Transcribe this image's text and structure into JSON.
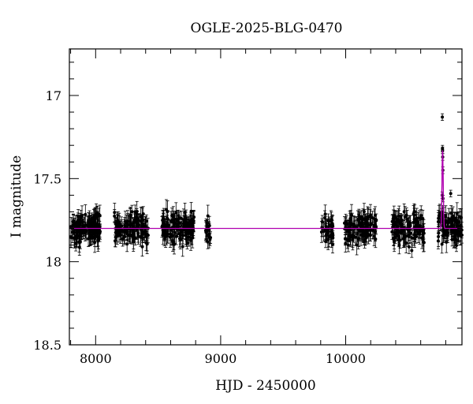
{
  "chart_data": {
    "type": "scatter",
    "title": "OGLE-2025-BLG-0470",
    "xlabel": "HJD - 2450000",
    "ylabel": "I magnitude",
    "xlim": [
      7790,
      10930
    ],
    "ylim": [
      18.5,
      16.72
    ],
    "y_inverted": true,
    "grid": false,
    "xticks": [
      8000,
      9000,
      10000
    ],
    "yticks": [
      17,
      17.5,
      18,
      18.5
    ],
    "baseline_mag": 17.8,
    "point_color": "#000000",
    "model_color": "#b000b0",
    "seasons": [
      {
        "start": 7800,
        "end": 8040,
        "mean": 17.8,
        "n": 120
      },
      {
        "start": 8150,
        "end": 8420,
        "mean": 17.8,
        "n": 130
      },
      {
        "start": 8530,
        "end": 8790,
        "mean": 17.8,
        "n": 130
      },
      {
        "start": 8880,
        "end": 8920,
        "mean": 17.8,
        "n": 18
      },
      {
        "start": 9800,
        "end": 9900,
        "mean": 17.8,
        "n": 40
      },
      {
        "start": 9990,
        "end": 10250,
        "mean": 17.8,
        "n": 110
      },
      {
        "start": 10370,
        "end": 10630,
        "mean": 17.8,
        "n": 110
      },
      {
        "start": 10740,
        "end": 10930,
        "mean": 17.8,
        "n": 90
      }
    ],
    "event_points": [
      {
        "x": 10773,
        "y": 17.13
      },
      {
        "x": 10774,
        "y": 17.32
      },
      {
        "x": 10775,
        "y": 17.33
      },
      {
        "x": 10776,
        "y": 17.37
      },
      {
        "x": 10777,
        "y": 17.45
      },
      {
        "x": 10772,
        "y": 17.6
      },
      {
        "x": 10778,
        "y": 17.62
      },
      {
        "x": 10770,
        "y": 17.7
      },
      {
        "x": 10782,
        "y": 17.72
      },
      {
        "x": 10840,
        "y": 17.59
      },
      {
        "x": 10850,
        "y": 17.75
      }
    ],
    "model": {
      "type": "pspl",
      "t0": 10775,
      "peak_mag": 17.33,
      "baseline_mag": 17.8,
      "half_width": 7
    }
  }
}
